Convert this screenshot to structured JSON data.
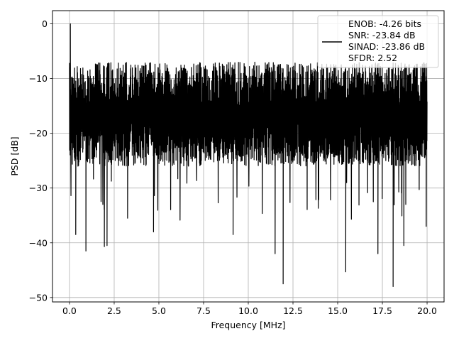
{
  "chart_data": {
    "type": "line",
    "title": "",
    "xlabel": "Frequency [MHz]",
    "ylabel": "PSD [dB]",
    "xlim": [
      -0.95,
      20.95
    ],
    "ylim": [
      -50.8,
      2.4
    ],
    "xticks": [
      0.0,
      2.5,
      5.0,
      7.5,
      10.0,
      12.5,
      15.0,
      17.5,
      20.0
    ],
    "xtick_labels": [
      "0.0",
      "2.5",
      "5.0",
      "7.5",
      "10.0",
      "12.5",
      "15.0",
      "17.5",
      "20.0"
    ],
    "yticks": [
      0,
      -10,
      -20,
      -30,
      -40,
      -50
    ],
    "ytick_labels": [
      "0",
      "−10",
      "−20",
      "−30",
      "−40",
      "−50"
    ],
    "grid": true,
    "legend_position": "top-right",
    "line_color": "#000000",
    "series": [
      {
        "name": "ENOB: -4.26 bits\nSNR: -23.84 dB\nSINAD: -23.86 dB\nSFDR: 2.52",
        "x_start": 0,
        "x_end": 20,
        "noise_floor_db": [
          -28,
          -7
        ],
        "peak": [
          0.05,
          0
        ],
        "deep_dips": [
          [
            0.35,
            -38.5
          ],
          [
            0.92,
            -41.5
          ],
          [
            1.95,
            -40.7
          ],
          [
            2.1,
            -40.5
          ],
          [
            3.25,
            -35.5
          ],
          [
            4.7,
            -38.0
          ],
          [
            9.15,
            -38.5
          ],
          [
            11.5,
            -42.0
          ],
          [
            11.95,
            -47.5
          ],
          [
            15.45,
            -45.3
          ],
          [
            17.25,
            -42.0
          ],
          [
            18.1,
            -48.0
          ],
          [
            18.7,
            -40.5
          ],
          [
            19.95,
            -37.0
          ]
        ]
      }
    ]
  },
  "legend": {
    "lines": [
      "ENOB: -4.26 bits",
      "SNR: -23.84 dB",
      "SINAD: -23.86 dB",
      "SFDR: 2.52"
    ]
  }
}
